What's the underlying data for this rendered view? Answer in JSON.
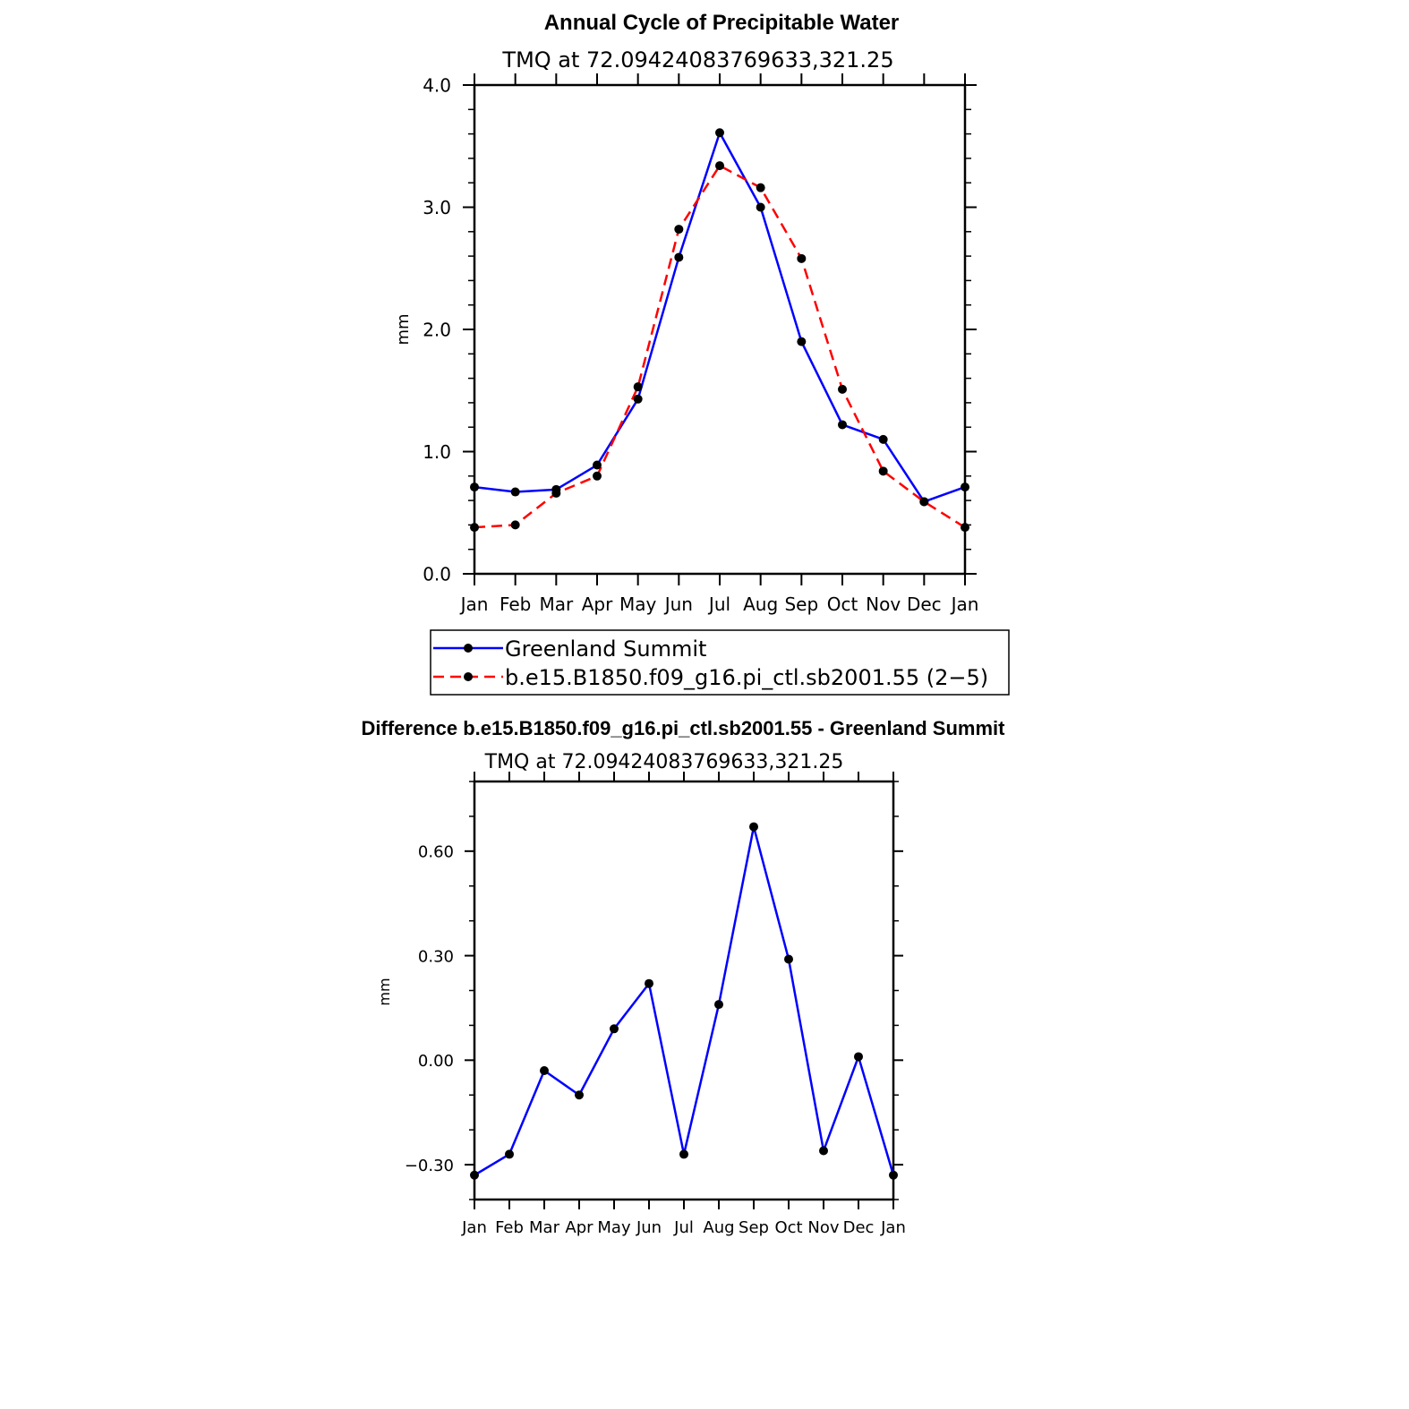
{
  "chart_data": [
    {
      "type": "line",
      "title": "Annual Cycle of Precipitable Water",
      "subtitle": "TMQ  at  72.09424083769633,321.25",
      "xlabel": "",
      "ylabel": "mm",
      "categories": [
        "Jan",
        "Feb",
        "Mar",
        "Apr",
        "May",
        "Jun",
        "Jul",
        "Aug",
        "Sep",
        "Oct",
        "Nov",
        "Dec",
        "Jan"
      ],
      "ylim": [
        0,
        4
      ],
      "yticks": [
        "0.0",
        "1.0",
        "2.0",
        "3.0",
        "4.0"
      ],
      "grid": false,
      "legend_position": "bottom",
      "series": [
        {
          "name": "Greenland Summit",
          "color": "#0000ff",
          "dash": "solid",
          "values": [
            0.71,
            0.67,
            0.69,
            0.89,
            1.43,
            2.59,
            3.61,
            3.0,
            1.9,
            1.22,
            1.1,
            0.59,
            0.71
          ]
        },
        {
          "name": "b.e15.B1850.f09_g16.pi_ctl.sb2001.55 (2−5)",
          "color": "#ff0000",
          "dash": "dashed",
          "values": [
            0.38,
            0.4,
            0.66,
            0.8,
            1.53,
            2.82,
            3.34,
            3.16,
            2.58,
            1.51,
            0.84,
            0.59,
            0.38
          ]
        }
      ]
    },
    {
      "type": "line",
      "title": "Difference b.e15.B1850.f09_g16.pi_ctl.sb2001.55 - Greenland Summit",
      "subtitle": "TMQ  at  72.09424083769633,321.25",
      "xlabel": "",
      "ylabel": "mm",
      "categories": [
        "Jan",
        "Feb",
        "Mar",
        "Apr",
        "May",
        "Jun",
        "Jul",
        "Aug",
        "Sep",
        "Oct",
        "Nov",
        "Dec",
        "Jan"
      ],
      "ylim": [
        -0.4,
        0.8
      ],
      "yticks": [
        "−0.30",
        "0.00",
        "0.30",
        "0.60"
      ],
      "ytick_values": [
        -0.3,
        0.0,
        0.3,
        0.6
      ],
      "grid": false,
      "series": [
        {
          "color": "#0000ff",
          "dash": "solid",
          "values": [
            -0.33,
            -0.27,
            -0.03,
            -0.1,
            0.09,
            0.22,
            -0.27,
            0.16,
            0.67,
            0.29,
            -0.26,
            0.01,
            -0.33
          ]
        }
      ]
    }
  ]
}
